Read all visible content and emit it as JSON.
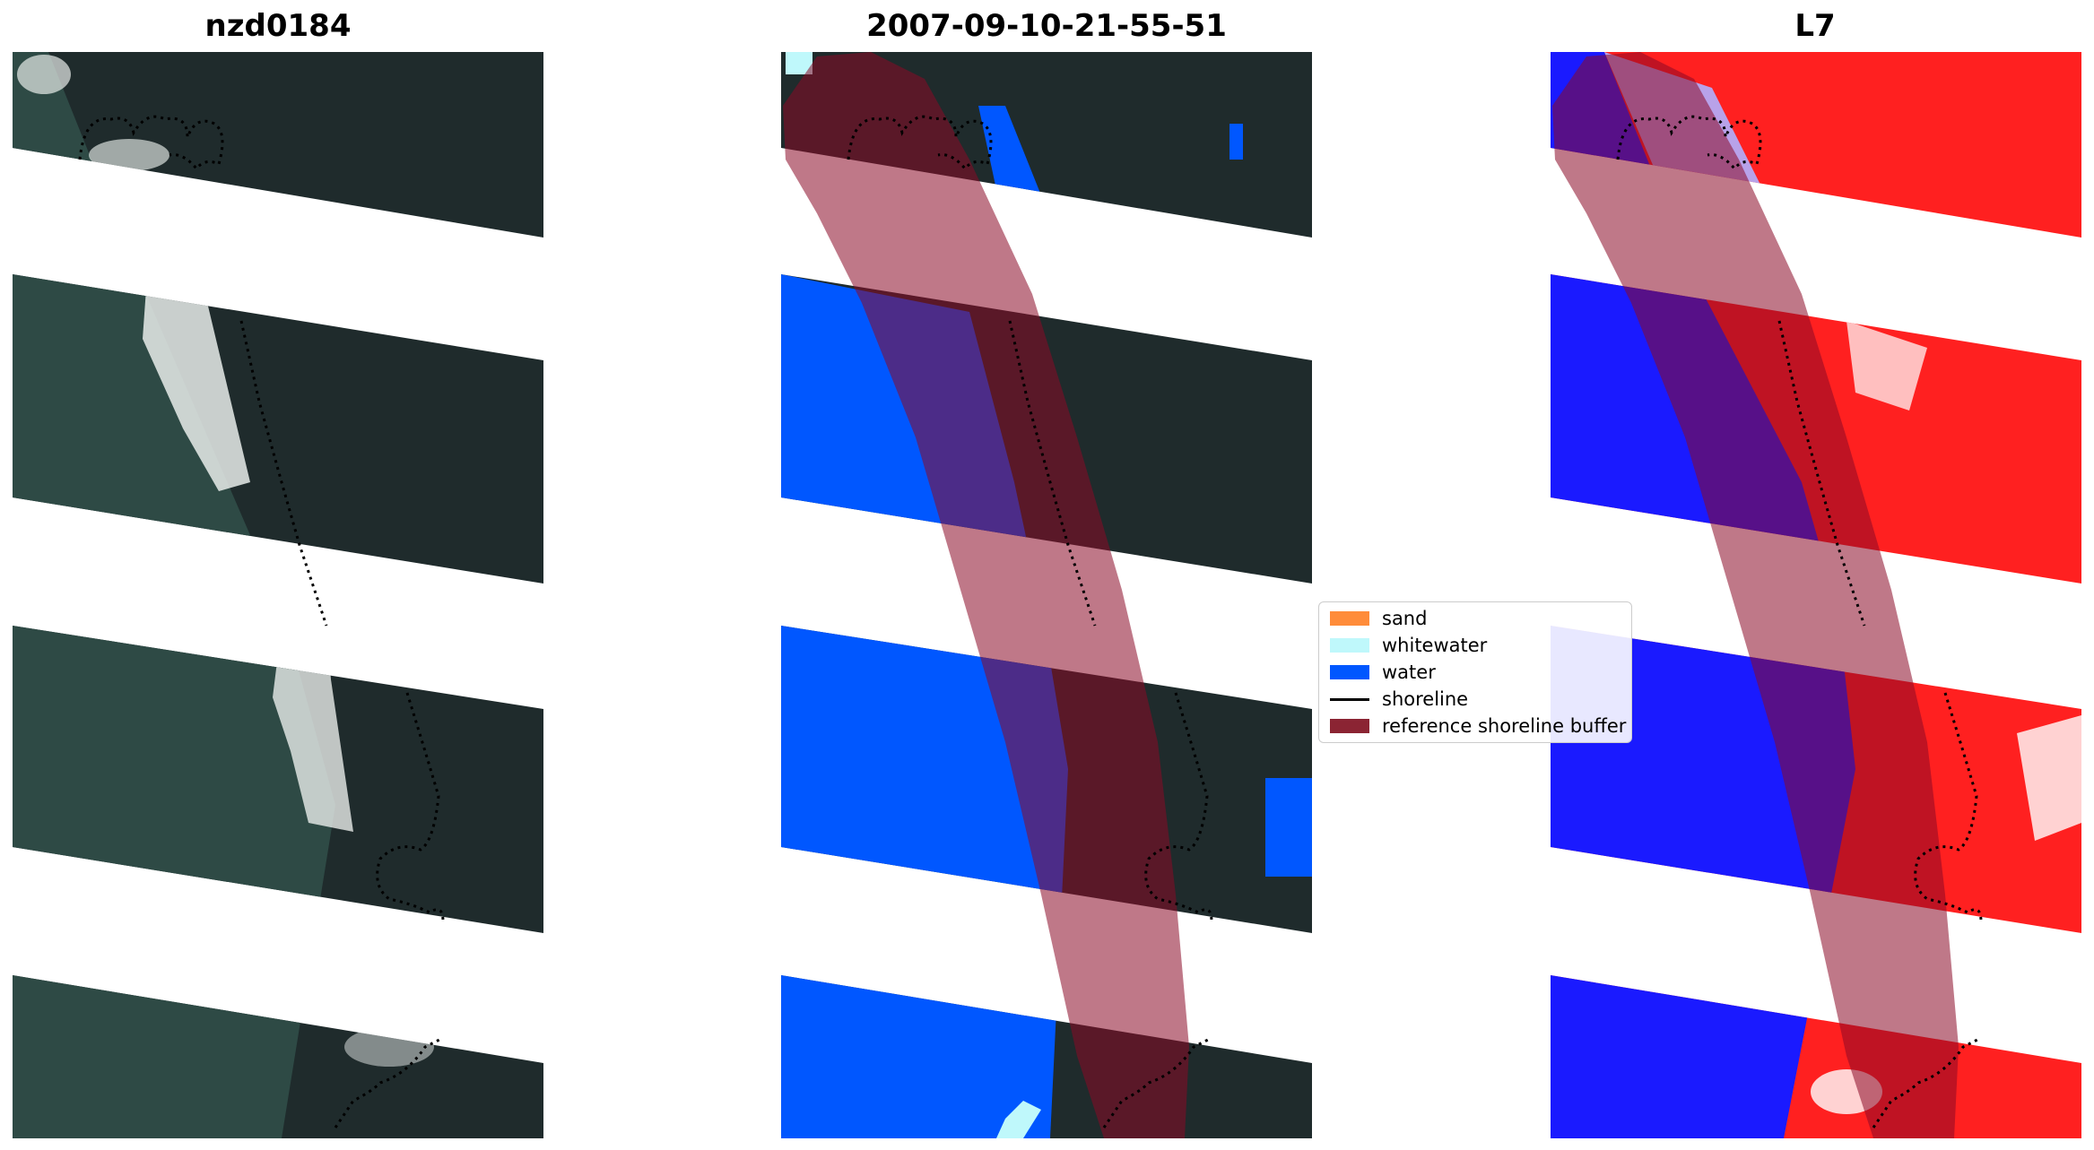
{
  "panels": [
    {
      "title": "nzd0184",
      "style": "rgb"
    },
    {
      "title": "2007-09-10-21-55-51",
      "style": "classified"
    },
    {
      "title": "L7",
      "style": "index"
    }
  ],
  "colors": {
    "rgb_sea": "#2e4a45",
    "rgb_land": "#1f2b2c",
    "rgb_whitewash": "#e8ecea",
    "class_water": "#0057ff",
    "class_whitewater": "#bff8fb",
    "class_sand": "#ff8c3a",
    "reference_band": "#8b0a26",
    "index_negative": "#1a1aff",
    "index_positive": "#ff2020",
    "shoreline": "#000000"
  },
  "legend": {
    "items": [
      {
        "label": "sand",
        "kind": "patch",
        "color": "#ff8c3a"
      },
      {
        "label": "whitewater",
        "kind": "patch",
        "color": "#bff8fb"
      },
      {
        "label": "water",
        "kind": "patch",
        "color": "#0057ff"
      },
      {
        "label": "shoreline",
        "kind": "line",
        "color": "#000000"
      },
      {
        "label": "reference shoreline buffer",
        "kind": "patch",
        "color": "#8b2433"
      }
    ]
  }
}
